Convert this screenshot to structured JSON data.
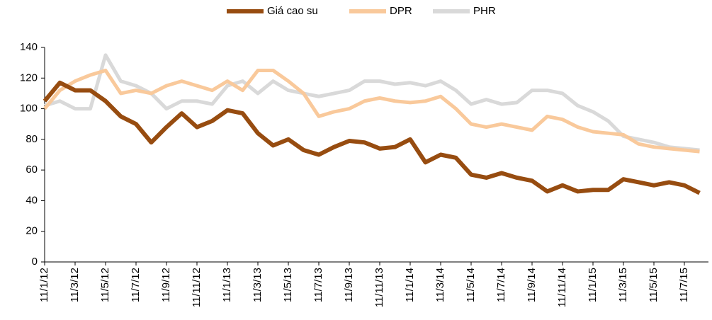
{
  "chart_data": {
    "type": "line",
    "categories": [
      "11/1/12",
      null,
      "11/3/12",
      null,
      "11/5/12",
      null,
      "11/7/12",
      null,
      "11/9/12",
      null,
      "11/11/12",
      null,
      "11/1/13",
      null,
      "11/3/13",
      null,
      "11/5/13",
      null,
      "11/7/13",
      null,
      "11/9/13",
      null,
      "11/11/13",
      null,
      "11/1/14",
      null,
      "11/3/14",
      null,
      "11/5/14",
      null,
      "11/7/14",
      null,
      "11/9/14",
      null,
      "11/11/14",
      null,
      "11/1/15",
      null,
      "11/3/15",
      null,
      "11/5/15",
      null,
      "11/7/15",
      null
    ],
    "series": [
      {
        "name": "Giá cao su",
        "color": "#974c10",
        "values": [
          105,
          117,
          112,
          112,
          105,
          95,
          90,
          78,
          88,
          97,
          88,
          92,
          99,
          97,
          84,
          76,
          80,
          73,
          70,
          75,
          79,
          78,
          74,
          75,
          80,
          65,
          70,
          68,
          57,
          55,
          58,
          55,
          53,
          46,
          50,
          46,
          47,
          47,
          54,
          52,
          50,
          52,
          50,
          45
        ]
      },
      {
        "name": "DPR",
        "color": "#f9c99b",
        "values": [
          100,
          112,
          118,
          122,
          125,
          110,
          112,
          110,
          115,
          118,
          115,
          112,
          118,
          112,
          125,
          125,
          118,
          110,
          95,
          98,
          100,
          105,
          107,
          105,
          104,
          105,
          108,
          100,
          90,
          88,
          90,
          88,
          86,
          95,
          93,
          88,
          85,
          84,
          83,
          77,
          75,
          74,
          73,
          72
        ]
      },
      {
        "name": "PHR",
        "color": "#d9d9d9",
        "values": [
          102,
          105,
          100,
          100,
          135,
          118,
          115,
          110,
          100,
          105,
          105,
          103,
          115,
          118,
          110,
          118,
          112,
          110,
          108,
          110,
          112,
          118,
          118,
          116,
          117,
          115,
          118,
          112,
          103,
          106,
          103,
          104,
          112,
          112,
          110,
          102,
          98,
          92,
          82,
          80,
          78,
          75,
          74,
          73
        ]
      }
    ],
    "ylim": [
      0,
      140
    ],
    "yticks": [
      0,
      20,
      40,
      60,
      80,
      100,
      120,
      140
    ],
    "grid": false,
    "legend": "top"
  }
}
